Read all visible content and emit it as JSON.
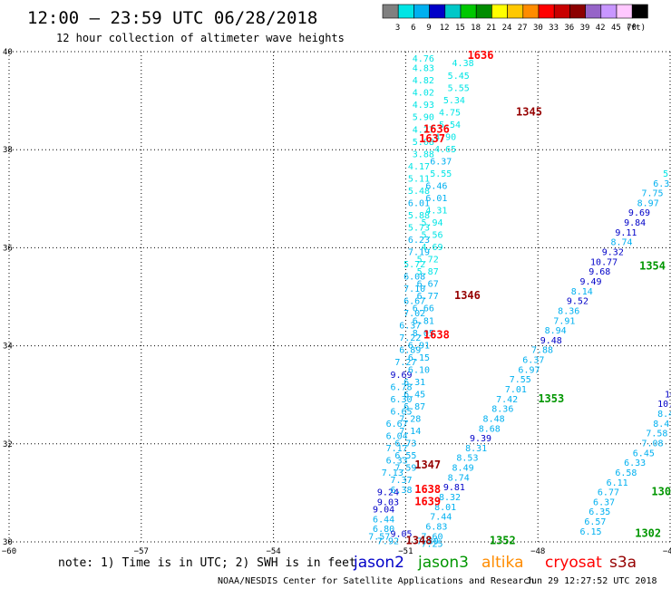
{
  "header": {
    "title": "12:00 — 23:59 UTC 06/28/2018",
    "subtitle": "12 hour collection of altimeter wave heights"
  },
  "colorbar": {
    "unit": "(ft)",
    "bins": [
      {
        "label": "3",
        "color": "#808080"
      },
      {
        "label": "6",
        "color": "#00e5e5"
      },
      {
        "label": "9",
        "color": "#00b0f0"
      },
      {
        "label": "12",
        "color": "#0000c8"
      },
      {
        "label": "15",
        "color": "#00c8c8"
      },
      {
        "label": "18",
        "color": "#00c800"
      },
      {
        "label": "21",
        "color": "#008c00"
      },
      {
        "label": "24",
        "color": "#ffff00"
      },
      {
        "label": "27",
        "color": "#ffc800"
      },
      {
        "label": "30",
        "color": "#ff8c00"
      },
      {
        "label": "33",
        "color": "#ff0000"
      },
      {
        "label": "36",
        "color": "#c80000"
      },
      {
        "label": "39",
        "color": "#8c0000"
      },
      {
        "label": "42",
        "color": "#9664c8"
      },
      {
        "label": "45",
        "color": "#c896ff"
      },
      {
        "label": "70",
        "color": "#ffc8ff"
      },
      {
        "label": "",
        "color": "#000000"
      }
    ]
  },
  "footer": {
    "note": "note: 1) Time is in UTC; 2) SWH is in feet",
    "credit": "NOAA/NESDIS Center for Satellite Applications and Research",
    "timestamp": "Jun 29 12:27:52 UTC 2018",
    "satellites": [
      {
        "name": "jason2",
        "color": "#0000c8"
      },
      {
        "name": "jason3",
        "color": "#009600"
      },
      {
        "name": "altika",
        "color": "#ff8c00"
      },
      {
        "name": "cryosat",
        "color": "#ff0000"
      },
      {
        "name": "s3a",
        "color": "#960000"
      }
    ]
  },
  "chart_data": {
    "type": "scatter",
    "title": "12:00 — 23:59 UTC 06/28/2018",
    "xlim": [
      -60,
      -45
    ],
    "ylim": [
      30,
      40
    ],
    "grid": true,
    "x_ticks": [
      {
        "v": -60,
        "label": "−60"
      },
      {
        "v": -57,
        "label": "−57"
      },
      {
        "v": -54,
        "label": "−54"
      },
      {
        "v": -51,
        "label": "−51"
      },
      {
        "v": -48,
        "label": "−48"
      },
      {
        "v": -45,
        "label": "−45"
      }
    ],
    "y_ticks": [
      {
        "v": 30,
        "label": "30"
      },
      {
        "v": 32,
        "label": "32"
      },
      {
        "v": 34,
        "label": "34"
      },
      {
        "v": 36,
        "label": "36"
      },
      {
        "v": 38,
        "label": "38"
      },
      {
        "v": 40,
        "label": "40"
      }
    ],
    "track_colors": {
      "3-6": "#00e5e5",
      "6-9": "#00b0f0",
      "9-12": "#0000c8"
    },
    "points": [
      {
        "lon": -50.6,
        "lat": 39.8,
        "v": "4.76"
      },
      {
        "lon": -50.6,
        "lat": 39.6,
        "v": "4.83"
      },
      {
        "lon": -50.6,
        "lat": 39.35,
        "v": "4.82"
      },
      {
        "lon": -50.6,
        "lat": 39.1,
        "v": "4.02"
      },
      {
        "lon": -50.6,
        "lat": 38.85,
        "v": "4.93"
      },
      {
        "lon": -50.6,
        "lat": 38.6,
        "v": "5.90"
      },
      {
        "lon": -50.6,
        "lat": 38.35,
        "v": "4.27"
      },
      {
        "lon": -50.6,
        "lat": 38.1,
        "v": "5.08"
      },
      {
        "lon": -50.6,
        "lat": 37.85,
        "v": "3.88"
      },
      {
        "lon": -50.7,
        "lat": 37.6,
        "v": "4.17"
      },
      {
        "lon": -50.7,
        "lat": 37.35,
        "v": "5.11"
      },
      {
        "lon": -50.7,
        "lat": 37.1,
        "v": "5.48"
      },
      {
        "lon": -50.7,
        "lat": 36.85,
        "v": "6.01"
      },
      {
        "lon": -50.7,
        "lat": 36.6,
        "v": "5.88"
      },
      {
        "lon": -50.7,
        "lat": 36.35,
        "v": "5.73"
      },
      {
        "lon": -50.7,
        "lat": 36.1,
        "v": "6.23"
      },
      {
        "lon": -50.7,
        "lat": 35.85,
        "v": "7.19"
      },
      {
        "lon": -50.8,
        "lat": 35.6,
        "v": "5.72"
      },
      {
        "lon": -50.8,
        "lat": 35.35,
        "v": "6.08"
      },
      {
        "lon": -50.8,
        "lat": 35.1,
        "v": "7.10"
      },
      {
        "lon": -50.8,
        "lat": 34.85,
        "v": "6.67"
      },
      {
        "lon": -50.8,
        "lat": 34.6,
        "v": "7.02"
      },
      {
        "lon": -50.9,
        "lat": 34.35,
        "v": "6.37"
      },
      {
        "lon": -50.9,
        "lat": 34.1,
        "v": "7.22"
      },
      {
        "lon": -50.9,
        "lat": 33.85,
        "v": "6.89"
      },
      {
        "lon": -51.0,
        "lat": 33.6,
        "v": "7.27"
      },
      {
        "lon": -51.1,
        "lat": 33.35,
        "v": "9.69"
      },
      {
        "lon": -51.1,
        "lat": 33.1,
        "v": "6.78"
      },
      {
        "lon": -51.1,
        "lat": 32.85,
        "v": "6.30"
      },
      {
        "lon": -51.1,
        "lat": 32.6,
        "v": "6.65"
      },
      {
        "lon": -51.2,
        "lat": 32.35,
        "v": "6.67"
      },
      {
        "lon": -51.2,
        "lat": 32.1,
        "v": "6.04"
      },
      {
        "lon": -51.2,
        "lat": 31.85,
        "v": "7.17"
      },
      {
        "lon": -51.2,
        "lat": 31.6,
        "v": "6.33"
      },
      {
        "lon": -51.3,
        "lat": 31.35,
        "v": "7.13"
      },
      {
        "lon": -51.4,
        "lat": 30.95,
        "v": "9.24"
      },
      {
        "lon": -51.4,
        "lat": 30.75,
        "v": "9.03"
      },
      {
        "lon": -51.5,
        "lat": 30.6,
        "v": "9.04"
      },
      {
        "lon": -51.5,
        "lat": 30.4,
        "v": "6.44"
      },
      {
        "lon": -51.5,
        "lat": 30.2,
        "v": "6.80"
      },
      {
        "lon": -51.6,
        "lat": 30.05,
        "v": "7.57"
      },
      {
        "lon": -51.4,
        "lat": 29.95,
        "v": "7.92"
      },
      {
        "lon": -51.1,
        "lat": 30.1,
        "v": "9.05"
      },
      {
        "lon": -49.7,
        "lat": 39.7,
        "v": "4.38"
      },
      {
        "lon": -49.8,
        "lat": 39.45,
        "v": "5.45"
      },
      {
        "lon": -49.8,
        "lat": 39.2,
        "v": "5.55"
      },
      {
        "lon": -49.9,
        "lat": 38.95,
        "v": "5.34"
      },
      {
        "lon": -50.0,
        "lat": 38.7,
        "v": "4.75"
      },
      {
        "lon": -50.0,
        "lat": 38.45,
        "v": "5.54"
      },
      {
        "lon": -50.1,
        "lat": 38.2,
        "v": "4.90"
      },
      {
        "lon": -50.1,
        "lat": 37.95,
        "v": "4.65"
      },
      {
        "lon": -50.2,
        "lat": 37.7,
        "v": "6.37"
      },
      {
        "lon": -50.2,
        "lat": 37.45,
        "v": "5.55"
      },
      {
        "lon": -50.3,
        "lat": 37.2,
        "v": "6.46"
      },
      {
        "lon": -50.3,
        "lat": 36.95,
        "v": "6.01"
      },
      {
        "lon": -50.3,
        "lat": 36.7,
        "v": "4.31"
      },
      {
        "lon": -50.4,
        "lat": 36.45,
        "v": "5.94"
      },
      {
        "lon": -50.4,
        "lat": 36.2,
        "v": "5.56"
      },
      {
        "lon": -50.4,
        "lat": 35.95,
        "v": "4.69"
      },
      {
        "lon": -50.5,
        "lat": 35.7,
        "v": "5.72"
      },
      {
        "lon": -50.5,
        "lat": 35.45,
        "v": "5.87"
      },
      {
        "lon": -50.5,
        "lat": 35.2,
        "v": "6.67"
      },
      {
        "lon": -50.5,
        "lat": 34.95,
        "v": "6.77"
      },
      {
        "lon": -50.6,
        "lat": 34.7,
        "v": "6.66"
      },
      {
        "lon": -50.6,
        "lat": 34.45,
        "v": "6.81"
      },
      {
        "lon": -50.6,
        "lat": 34.2,
        "v": "8.05"
      },
      {
        "lon": -50.7,
        "lat": 33.95,
        "v": "6.91"
      },
      {
        "lon": -50.7,
        "lat": 33.7,
        "v": "6.15"
      },
      {
        "lon": -50.7,
        "lat": 33.45,
        "v": "6.10"
      },
      {
        "lon": -50.8,
        "lat": 33.2,
        "v": "6.31"
      },
      {
        "lon": -50.8,
        "lat": 32.95,
        "v": "6.45"
      },
      {
        "lon": -50.8,
        "lat": 32.7,
        "v": "6.87"
      },
      {
        "lon": -50.9,
        "lat": 32.45,
        "v": "7.28"
      },
      {
        "lon": -50.9,
        "lat": 32.2,
        "v": "7.14"
      },
      {
        "lon": -51.0,
        "lat": 31.95,
        "v": "6.73"
      },
      {
        "lon": -51.0,
        "lat": 31.7,
        "v": "6.55"
      },
      {
        "lon": -51.0,
        "lat": 31.45,
        "v": "7.59"
      },
      {
        "lon": -51.1,
        "lat": 31.2,
        "v": "7.37"
      },
      {
        "lon": -51.1,
        "lat": 31.0,
        "v": "6.38"
      },
      {
        "lon": -45.1,
        "lat": 37.45,
        "v": "5"
      },
      {
        "lon": -45.2,
        "lat": 37.25,
        "v": "6.3"
      },
      {
        "lon": -45.4,
        "lat": 37.05,
        "v": "7.75"
      },
      {
        "lon": -45.5,
        "lat": 36.85,
        "v": "8.97"
      },
      {
        "lon": -45.7,
        "lat": 36.65,
        "v": "9.69"
      },
      {
        "lon": -45.8,
        "lat": 36.45,
        "v": "9.84"
      },
      {
        "lon": -46.0,
        "lat": 36.25,
        "v": "9.11"
      },
      {
        "lon": -46.1,
        "lat": 36.05,
        "v": "8.74"
      },
      {
        "lon": -46.3,
        "lat": 35.85,
        "v": "9.32"
      },
      {
        "lon": -46.5,
        "lat": 35.65,
        "v": "10.77"
      },
      {
        "lon": -46.6,
        "lat": 35.45,
        "v": "9.68"
      },
      {
        "lon": -46.8,
        "lat": 35.25,
        "v": "9.49"
      },
      {
        "lon": -47.0,
        "lat": 35.05,
        "v": "8.14"
      },
      {
        "lon": -47.1,
        "lat": 34.85,
        "v": "9.52"
      },
      {
        "lon": -47.3,
        "lat": 34.65,
        "v": "8.36"
      },
      {
        "lon": -47.4,
        "lat": 34.45,
        "v": "7.91"
      },
      {
        "lon": -47.6,
        "lat": 34.25,
        "v": "8.94"
      },
      {
        "lon": -47.7,
        "lat": 34.05,
        "v": "9.48"
      },
      {
        "lon": -47.9,
        "lat": 33.85,
        "v": "7.88"
      },
      {
        "lon": -48.1,
        "lat": 33.65,
        "v": "6.37"
      },
      {
        "lon": -48.2,
        "lat": 33.45,
        "v": "6.97"
      },
      {
        "lon": -48.4,
        "lat": 33.25,
        "v": "7.55"
      },
      {
        "lon": -48.5,
        "lat": 33.05,
        "v": "7.01"
      },
      {
        "lon": -48.7,
        "lat": 32.85,
        "v": "7.42"
      },
      {
        "lon": -48.8,
        "lat": 32.65,
        "v": "8.36"
      },
      {
        "lon": -49.0,
        "lat": 32.45,
        "v": "8.48"
      },
      {
        "lon": -49.1,
        "lat": 32.25,
        "v": "8.68"
      },
      {
        "lon": -49.3,
        "lat": 32.05,
        "v": "9.39"
      },
      {
        "lon": -49.4,
        "lat": 31.85,
        "v": "8.31"
      },
      {
        "lon": -49.6,
        "lat": 31.65,
        "v": "8.53"
      },
      {
        "lon": -49.7,
        "lat": 31.45,
        "v": "8.49"
      },
      {
        "lon": -49.8,
        "lat": 31.25,
        "v": "8.74"
      },
      {
        "lon": -49.9,
        "lat": 31.05,
        "v": "9.81"
      },
      {
        "lon": -50.0,
        "lat": 30.85,
        "v": "8.32"
      },
      {
        "lon": -50.1,
        "lat": 30.65,
        "v": "8.01"
      },
      {
        "lon": -50.2,
        "lat": 30.45,
        "v": "7.44"
      },
      {
        "lon": -50.3,
        "lat": 30.25,
        "v": "6.83"
      },
      {
        "lon": -50.4,
        "lat": 30.05,
        "v": "7.60"
      },
      {
        "lon": -50.5,
        "lat": 29.95,
        "v": "7.80"
      },
      {
        "lon": -50.4,
        "lat": 29.9,
        "v": "7.25"
      },
      {
        "lon": -45.0,
        "lat": 32.95,
        "v": "10"
      },
      {
        "lon": -45.1,
        "lat": 32.75,
        "v": "10."
      },
      {
        "lon": -45.1,
        "lat": 32.55,
        "v": "8.4"
      },
      {
        "lon": -45.2,
        "lat": 32.35,
        "v": "8.4"
      },
      {
        "lon": -45.3,
        "lat": 32.15,
        "v": "7.58"
      },
      {
        "lon": -45.4,
        "lat": 31.95,
        "v": "7.08"
      },
      {
        "lon": -45.6,
        "lat": 31.75,
        "v": "6.45"
      },
      {
        "lon": -45.8,
        "lat": 31.55,
        "v": "6.33"
      },
      {
        "lon": -46.0,
        "lat": 31.35,
        "v": "6.58"
      },
      {
        "lon": -46.2,
        "lat": 31.15,
        "v": "6.11"
      },
      {
        "lon": -46.4,
        "lat": 30.95,
        "v": "6.77"
      },
      {
        "lon": -46.5,
        "lat": 30.75,
        "v": "6.37"
      },
      {
        "lon": -46.6,
        "lat": 30.55,
        "v": "6.35"
      },
      {
        "lon": -46.7,
        "lat": 30.35,
        "v": "6.57"
      },
      {
        "lon": -46.8,
        "lat": 30.15,
        "v": "6.15"
      }
    ],
    "time_labels": [
      {
        "lon": -49.3,
        "lat": 39.85,
        "v": "1636",
        "color": "#ff0000"
      },
      {
        "lon": -48.2,
        "lat": 38.7,
        "v": "1345",
        "color": "#960000"
      },
      {
        "lon": -50.3,
        "lat": 38.35,
        "v": "1636",
        "color": "#ff0000"
      },
      {
        "lon": -50.4,
        "lat": 38.15,
        "v": "1637",
        "color": "#ff0000"
      },
      {
        "lon": -49.6,
        "lat": 34.95,
        "v": "1346",
        "color": "#960000"
      },
      {
        "lon": -50.3,
        "lat": 34.15,
        "v": "1638",
        "color": "#ff0000"
      },
      {
        "lon": -45.4,
        "lat": 35.55,
        "v": "1354",
        "color": "#009600"
      },
      {
        "lon": -47.7,
        "lat": 32.85,
        "v": "1353",
        "color": "#009600"
      },
      {
        "lon": -50.5,
        "lat": 31.5,
        "v": "1347",
        "color": "#960000"
      },
      {
        "lon": -50.5,
        "lat": 31.0,
        "v": "1638",
        "color": "#ff0000"
      },
      {
        "lon": -50.5,
        "lat": 30.75,
        "v": "1639",
        "color": "#ff0000"
      },
      {
        "lon": -45.2,
        "lat": 30.95,
        "v": "130",
        "color": "#009600"
      },
      {
        "lon": -45.5,
        "lat": 30.1,
        "v": "1302",
        "color": "#009600"
      },
      {
        "lon": -48.8,
        "lat": 29.95,
        "v": "1352",
        "color": "#009600"
      },
      {
        "lon": -50.7,
        "lat": 29.95,
        "v": "1348",
        "color": "#960000"
      }
    ]
  }
}
